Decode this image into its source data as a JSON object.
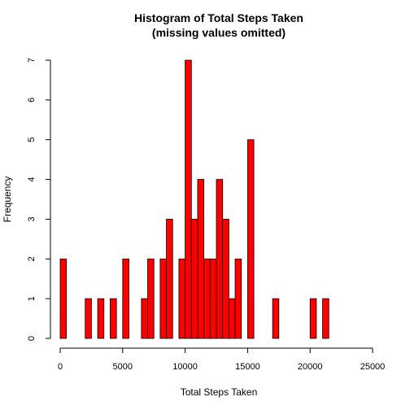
{
  "chart_data": {
    "type": "bar",
    "title": "Histogram of Total Steps Taken",
    "subtitle": "(missing values omitted)",
    "xlabel": "Total Steps Taken",
    "ylabel": "Frequency",
    "bar_color": "#ff0000",
    "bin_width": 500,
    "x_start": 0,
    "xlim": [
      0,
      25000
    ],
    "ylim": [
      0,
      7
    ],
    "x_ticks": [
      "0",
      "5000",
      "10000",
      "15000",
      "20000",
      "25000"
    ],
    "y_ticks": [
      "0",
      "1",
      "2",
      "3",
      "4",
      "5",
      "6",
      "7"
    ],
    "values": [
      2,
      0,
      0,
      0,
      1,
      0,
      1,
      0,
      1,
      0,
      2,
      0,
      0,
      1,
      2,
      0,
      2,
      3,
      0,
      2,
      7,
      3,
      4,
      2,
      2,
      4,
      3,
      1,
      2,
      0,
      5,
      0,
      0,
      0,
      1,
      0,
      0,
      0,
      0,
      0,
      1,
      0,
      1
    ]
  }
}
